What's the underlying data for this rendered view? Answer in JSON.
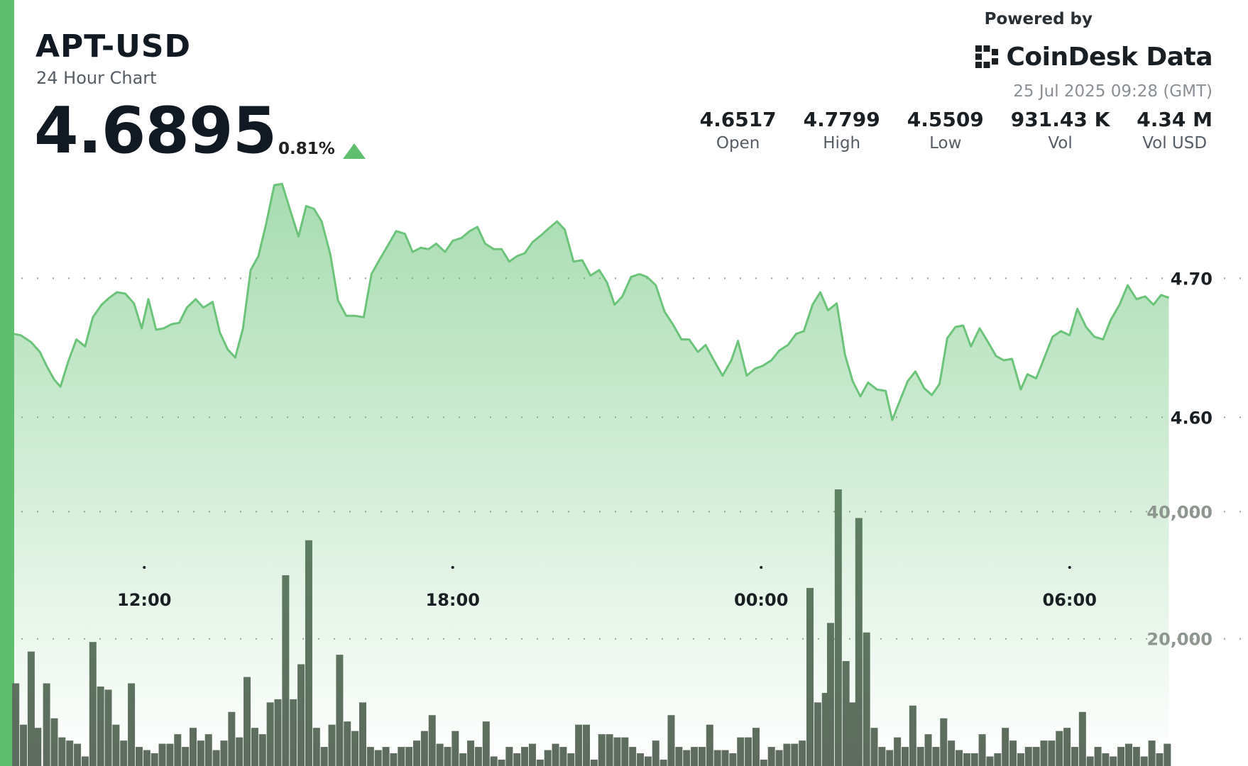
{
  "header": {
    "symbol": "APT-USD",
    "subtitle": "24 Hour Chart",
    "price": "4.6895",
    "change_pct": "0.81%",
    "change_direction_icon": "triangle-up-icon"
  },
  "branding": {
    "powered_by": "Powered by",
    "brand_name": "CoinDesk Data",
    "logo_icon": "coindesk-logo-icon",
    "timestamp": "25 Jul 2025 09:28 (GMT)"
  },
  "stats": [
    {
      "value": "4.6517",
      "label": "Open"
    },
    {
      "value": "4.7799",
      "label": "High"
    },
    {
      "value": "4.5509",
      "label": "Low"
    },
    {
      "value": "931.43 K",
      "label": "Vol"
    },
    {
      "value": "4.34 M",
      "label": "Vol USD"
    }
  ],
  "colors": {
    "accent": "#5fbf6f",
    "line": "#6cc47a",
    "volume_bar": "#5d6b5e",
    "text": "#111a22"
  },
  "chart_data": {
    "type": "area",
    "price_axis": {
      "ticks": [
        4.6,
        4.7
      ],
      "tick_labels": [
        "4.60",
        "4.70"
      ],
      "range": [
        4.543,
        4.788
      ]
    },
    "volume_axis": {
      "ticks": [
        20000,
        40000
      ],
      "tick_labels": [
        "20,000",
        "40,000"
      ],
      "range": [
        0,
        58000
      ]
    },
    "time_axis": {
      "ticks": [
        "12:00",
        "18:00",
        "00:00",
        "06:00"
      ],
      "range_hours": [
        9.47,
        33.47
      ]
    },
    "grid": "dotted horizontal",
    "price_series": [
      [
        9.47,
        4.66
      ],
      [
        9.6,
        4.659
      ],
      [
        9.8,
        4.654
      ],
      [
        9.97,
        4.647
      ],
      [
        10.1,
        4.637
      ],
      [
        10.25,
        4.627
      ],
      [
        10.37,
        4.622
      ],
      [
        10.52,
        4.64
      ],
      [
        10.68,
        4.656
      ],
      [
        10.85,
        4.651
      ],
      [
        11.0,
        4.672
      ],
      [
        11.17,
        4.681
      ],
      [
        11.32,
        4.686
      ],
      [
        11.47,
        4.69
      ],
      [
        11.63,
        4.689
      ],
      [
        11.8,
        4.682
      ],
      [
        11.95,
        4.664
      ],
      [
        12.08,
        4.685
      ],
      [
        12.23,
        4.663
      ],
      [
        12.38,
        4.664
      ],
      [
        12.53,
        4.667
      ],
      [
        12.68,
        4.668
      ],
      [
        12.83,
        4.679
      ],
      [
        13.0,
        4.685
      ],
      [
        13.15,
        4.679
      ],
      [
        13.33,
        4.683
      ],
      [
        13.47,
        4.661
      ],
      [
        13.62,
        4.649
      ],
      [
        13.77,
        4.643
      ],
      [
        13.92,
        4.664
      ],
      [
        14.07,
        4.706
      ],
      [
        14.22,
        4.716
      ],
      [
        14.37,
        4.739
      ],
      [
        14.53,
        4.767
      ],
      [
        14.68,
        4.768
      ],
      [
        14.83,
        4.75
      ],
      [
        15.0,
        4.73
      ],
      [
        15.15,
        4.752
      ],
      [
        15.3,
        4.75
      ],
      [
        15.45,
        4.741
      ],
      [
        15.62,
        4.717
      ],
      [
        15.77,
        4.684
      ],
      [
        15.93,
        4.673
      ],
      [
        16.1,
        4.673
      ],
      [
        16.27,
        4.672
      ],
      [
        16.42,
        4.703
      ],
      [
        16.57,
        4.713
      ],
      [
        16.73,
        4.723
      ],
      [
        16.9,
        4.734
      ],
      [
        17.07,
        4.732
      ],
      [
        17.22,
        4.719
      ],
      [
        17.38,
        4.722
      ],
      [
        17.53,
        4.721
      ],
      [
        17.68,
        4.725
      ],
      [
        17.85,
        4.719
      ],
      [
        18.0,
        4.727
      ],
      [
        18.17,
        4.729
      ],
      [
        18.33,
        4.734
      ],
      [
        18.48,
        4.737
      ],
      [
        18.63,
        4.725
      ],
      [
        18.8,
        4.721
      ],
      [
        18.95,
        4.721
      ],
      [
        19.1,
        4.712
      ],
      [
        19.25,
        4.716
      ],
      [
        19.4,
        4.718
      ],
      [
        19.55,
        4.726
      ],
      [
        19.72,
        4.731
      ],
      [
        19.87,
        4.736
      ],
      [
        20.03,
        4.741
      ],
      [
        20.18,
        4.735
      ],
      [
        20.35,
        4.712
      ],
      [
        20.52,
        4.713
      ],
      [
        20.68,
        4.702
      ],
      [
        20.85,
        4.706
      ],
      [
        21.0,
        4.697
      ],
      [
        21.15,
        4.681
      ],
      [
        21.3,
        4.687
      ],
      [
        21.47,
        4.701
      ],
      [
        21.63,
        4.703
      ],
      [
        21.78,
        4.701
      ],
      [
        21.95,
        4.695
      ],
      [
        22.12,
        4.676
      ],
      [
        22.28,
        4.667
      ],
      [
        22.45,
        4.656
      ],
      [
        22.6,
        4.656
      ],
      [
        22.77,
        4.647
      ],
      [
        22.92,
        4.652
      ],
      [
        23.08,
        4.641
      ],
      [
        23.25,
        4.63
      ],
      [
        23.42,
        4.641
      ],
      [
        23.55,
        4.655
      ],
      [
        23.72,
        4.63
      ],
      [
        23.88,
        4.635
      ],
      [
        24.03,
        4.637
      ],
      [
        24.2,
        4.641
      ],
      [
        24.35,
        4.648
      ],
      [
        24.52,
        4.652
      ],
      [
        24.68,
        4.66
      ],
      [
        24.83,
        4.662
      ],
      [
        25.0,
        4.681
      ],
      [
        25.15,
        4.69
      ],
      [
        25.3,
        4.677
      ],
      [
        25.47,
        4.682
      ],
      [
        25.63,
        4.645
      ],
      [
        25.78,
        4.626
      ],
      [
        25.93,
        4.615
      ],
      [
        26.08,
        4.625
      ],
      [
        26.25,
        4.62
      ],
      [
        26.42,
        4.619
      ],
      [
        26.55,
        4.598
      ],
      [
        26.7,
        4.612
      ],
      [
        26.85,
        4.626
      ],
      [
        27.0,
        4.633
      ],
      [
        27.17,
        4.621
      ],
      [
        27.32,
        4.616
      ],
      [
        27.47,
        4.624
      ],
      [
        27.62,
        4.657
      ],
      [
        27.78,
        4.665
      ],
      [
        27.93,
        4.666
      ],
      [
        28.08,
        4.651
      ],
      [
        28.25,
        4.664
      ],
      [
        28.4,
        4.655
      ],
      [
        28.57,
        4.644
      ],
      [
        28.72,
        4.641
      ],
      [
        28.88,
        4.642
      ],
      [
        29.05,
        4.62
      ],
      [
        29.18,
        4.631
      ],
      [
        29.35,
        4.628
      ],
      [
        29.5,
        4.642
      ],
      [
        29.67,
        4.658
      ],
      [
        29.83,
        4.662
      ],
      [
        30.0,
        4.659
      ],
      [
        30.15,
        4.678
      ],
      [
        30.32,
        4.665
      ],
      [
        30.48,
        4.658
      ],
      [
        30.65,
        4.656
      ],
      [
        30.8,
        4.67
      ],
      [
        30.97,
        4.681
      ],
      [
        31.13,
        4.695
      ],
      [
        31.3,
        4.685
      ],
      [
        31.47,
        4.687
      ],
      [
        31.63,
        4.681
      ],
      [
        31.78,
        4.688
      ],
      [
        31.93,
        4.686
      ]
    ],
    "volume_series": [
      [
        9.5,
        13000
      ],
      [
        9.65,
        6500
      ],
      [
        9.8,
        18000
      ],
      [
        9.93,
        6000
      ],
      [
        10.1,
        13000
      ],
      [
        10.25,
        7500
      ],
      [
        10.4,
        4500
      ],
      [
        10.55,
        4000
      ],
      [
        10.7,
        3500
      ],
      [
        10.85,
        1500
      ],
      [
        11.0,
        19500
      ],
      [
        11.15,
        12500
      ],
      [
        11.3,
        12000
      ],
      [
        11.45,
        6500
      ],
      [
        11.6,
        4000
      ],
      [
        11.75,
        13000
      ],
      [
        11.9,
        3000
      ],
      [
        12.05,
        2500
      ],
      [
        12.2,
        2000
      ],
      [
        12.35,
        3500
      ],
      [
        12.5,
        3500
      ],
      [
        12.65,
        5000
      ],
      [
        12.8,
        3000
      ],
      [
        12.95,
        6000
      ],
      [
        13.1,
        4000
      ],
      [
        13.25,
        5000
      ],
      [
        13.4,
        2500
      ],
      [
        13.55,
        4000
      ],
      [
        13.7,
        8500
      ],
      [
        13.85,
        4500
      ],
      [
        14.0,
        14000
      ],
      [
        14.15,
        6000
      ],
      [
        14.3,
        5000
      ],
      [
        14.45,
        10000
      ],
      [
        14.6,
        10500
      ],
      [
        14.75,
        30000
      ],
      [
        14.9,
        10500
      ],
      [
        15.05,
        16000
      ],
      [
        15.2,
        35500
      ],
      [
        15.35,
        6000
      ],
      [
        15.5,
        3000
      ],
      [
        15.65,
        6500
      ],
      [
        15.8,
        17500
      ],
      [
        15.95,
        7000
      ],
      [
        16.1,
        5500
      ],
      [
        16.25,
        10000
      ],
      [
        16.4,
        3000
      ],
      [
        16.55,
        2500
      ],
      [
        16.7,
        3000
      ],
      [
        16.85,
        2000
      ],
      [
        17.0,
        3000
      ],
      [
        17.15,
        3000
      ],
      [
        17.3,
        4000
      ],
      [
        17.45,
        5500
      ],
      [
        17.6,
        8000
      ],
      [
        17.75,
        3500
      ],
      [
        17.9,
        3000
      ],
      [
        18.05,
        5500
      ],
      [
        18.2,
        2000
      ],
      [
        18.35,
        4000
      ],
      [
        18.5,
        3000
      ],
      [
        18.65,
        7000
      ],
      [
        18.8,
        1500
      ],
      [
        18.95,
        1000
      ],
      [
        19.1,
        3000
      ],
      [
        19.25,
        2000
      ],
      [
        19.4,
        3000
      ],
      [
        19.55,
        3500
      ],
      [
        19.7,
        1000
      ],
      [
        19.85,
        2500
      ],
      [
        20.0,
        3500
      ],
      [
        20.15,
        3000
      ],
      [
        20.3,
        2000
      ],
      [
        20.45,
        6500
      ],
      [
        20.6,
        6500
      ],
      [
        20.75,
        1000
      ],
      [
        20.9,
        5000
      ],
      [
        21.05,
        5000
      ],
      [
        21.2,
        4500
      ],
      [
        21.35,
        4500
      ],
      [
        21.5,
        3000
      ],
      [
        21.65,
        2000
      ],
      [
        21.8,
        1500
      ],
      [
        21.95,
        4000
      ],
      [
        22.1,
        1000
      ],
      [
        22.25,
        8000
      ],
      [
        22.4,
        3000
      ],
      [
        22.55,
        2500
      ],
      [
        22.7,
        3000
      ],
      [
        22.85,
        3000
      ],
      [
        23.0,
        6500
      ],
      [
        23.15,
        2500
      ],
      [
        23.3,
        2500
      ],
      [
        23.45,
        2000
      ],
      [
        23.6,
        4500
      ],
      [
        23.75,
        4500
      ],
      [
        23.9,
        6000
      ],
      [
        24.05,
        1000
      ],
      [
        24.2,
        3000
      ],
      [
        24.35,
        2500
      ],
      [
        24.5,
        3500
      ],
      [
        24.65,
        3500
      ],
      [
        24.8,
        4000
      ],
      [
        24.95,
        28000
      ],
      [
        25.1,
        10000
      ],
      [
        25.25,
        11500
      ],
      [
        25.35,
        22500
      ],
      [
        25.5,
        43500
      ],
      [
        25.65,
        16500
      ],
      [
        25.78,
        10000
      ],
      [
        25.9,
        39000
      ],
      [
        26.05,
        21000
      ],
      [
        26.2,
        6000
      ],
      [
        26.35,
        3000
      ],
      [
        26.5,
        2500
      ],
      [
        26.65,
        4500
      ],
      [
        26.8,
        3000
      ],
      [
        26.95,
        9500
      ],
      [
        27.1,
        3000
      ],
      [
        27.25,
        5000
      ],
      [
        27.4,
        3000
      ],
      [
        27.55,
        7500
      ],
      [
        27.7,
        4000
      ],
      [
        27.85,
        2500
      ],
      [
        28.0,
        2000
      ],
      [
        28.15,
        2000
      ],
      [
        28.3,
        5000
      ],
      [
        28.45,
        1500
      ],
      [
        28.6,
        2000
      ],
      [
        28.75,
        6000
      ],
      [
        28.9,
        4000
      ],
      [
        29.05,
        2000
      ],
      [
        29.2,
        3000
      ],
      [
        29.35,
        3000
      ],
      [
        29.5,
        4000
      ],
      [
        29.65,
        4000
      ],
      [
        29.8,
        5500
      ],
      [
        29.95,
        6000
      ],
      [
        30.1,
        3000
      ],
      [
        30.25,
        8500
      ],
      [
        30.4,
        1500
      ],
      [
        30.55,
        3000
      ],
      [
        30.7,
        2000
      ],
      [
        30.85,
        1500
      ],
      [
        31.0,
        3000
      ],
      [
        31.15,
        3500
      ],
      [
        31.3,
        3000
      ],
      [
        31.45,
        1500
      ],
      [
        31.6,
        4000
      ],
      [
        31.75,
        2000
      ],
      [
        31.9,
        3500
      ]
    ]
  }
}
